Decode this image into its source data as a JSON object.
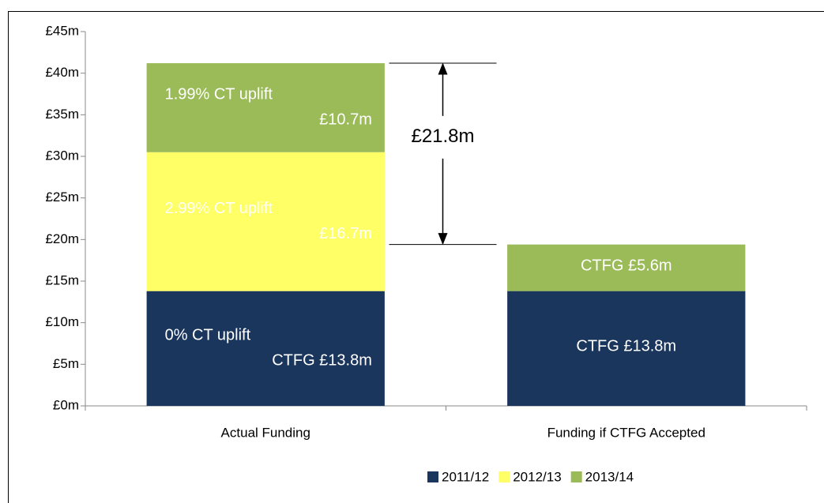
{
  "chart_data": {
    "type": "stacked_bar",
    "categories": [
      "Actual Funding",
      "Funding if CTFG Accepted"
    ],
    "series": [
      {
        "name": "2011/12",
        "color": "#1b365d",
        "values": [
          13.8,
          13.8
        ],
        "value_labels": [
          "CTFG £13.8m",
          "CTFG £13.8m"
        ],
        "captions": [
          "0% CT uplift",
          null
        ]
      },
      {
        "name": "2012/13",
        "color": "#ffff66",
        "values": [
          16.7,
          null
        ],
        "value_labels": [
          "£16.7m",
          null
        ],
        "captions": [
          "2.99% CT uplift",
          null
        ]
      },
      {
        "name": "2013/14",
        "color": "#9bbb59",
        "values": [
          10.7,
          5.6
        ],
        "value_labels": [
          "£10.7m",
          "CTFG £5.6m"
        ],
        "captions": [
          "1.99% CT uplift",
          null
        ]
      }
    ],
    "ylim": [
      0,
      45
    ],
    "yticks": [
      {
        "value": 0,
        "label": "£0m"
      },
      {
        "value": 5,
        "label": "£5m"
      },
      {
        "value": 10,
        "label": "£10m"
      },
      {
        "value": 15,
        "label": "£15m"
      },
      {
        "value": 20,
        "label": "£20m"
      },
      {
        "value": 25,
        "label": "£25m"
      },
      {
        "value": 30,
        "label": "£30m"
      },
      {
        "value": 35,
        "label": "£35m"
      },
      {
        "value": 40,
        "label": "£40m"
      },
      {
        "value": 45,
        "label": "£45m"
      }
    ],
    "annotations": [
      {
        "text": "£21.8m"
      }
    ],
    "legend": "bottom"
  }
}
